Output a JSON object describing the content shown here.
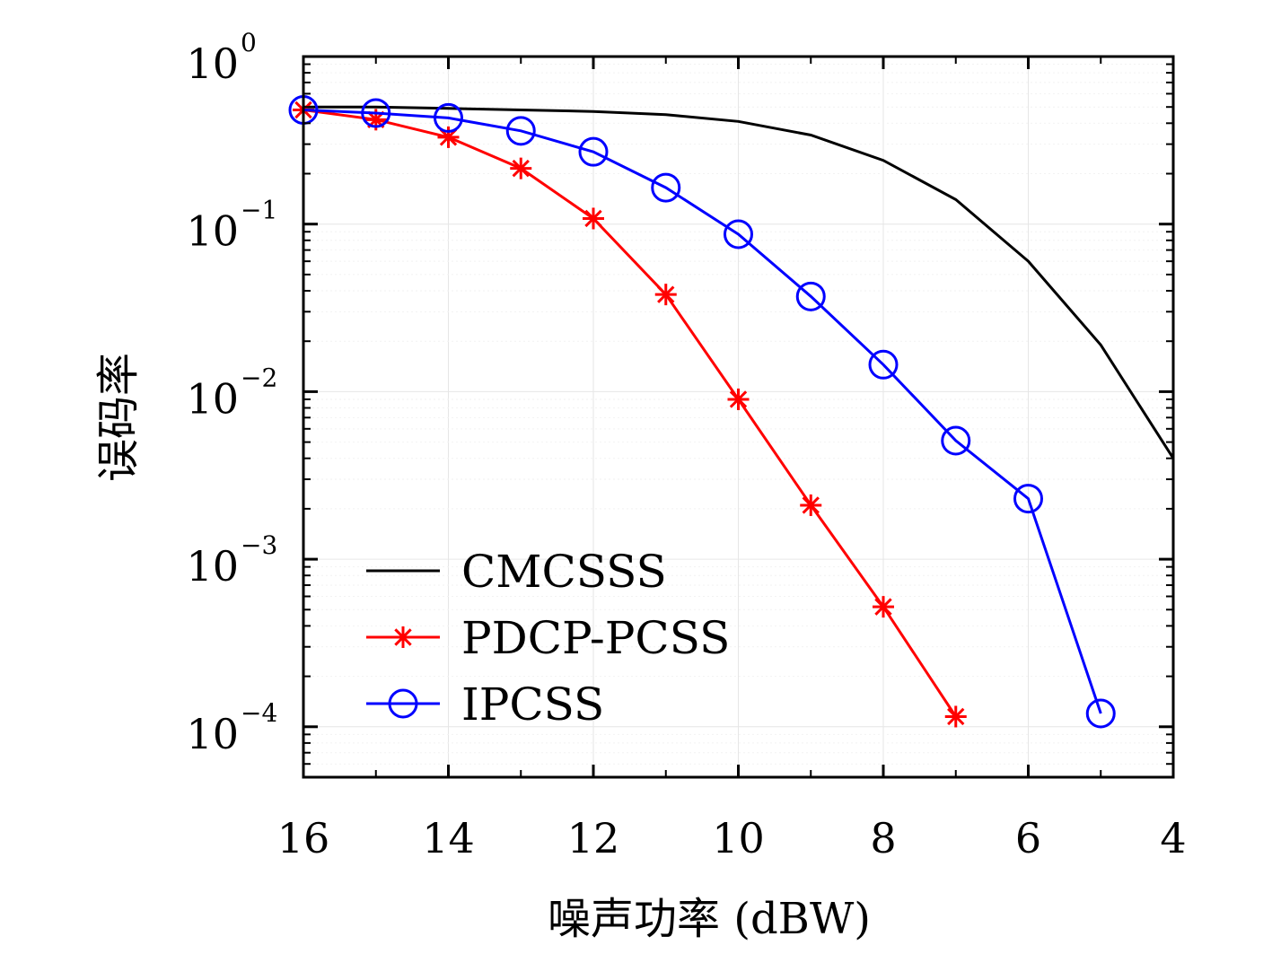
{
  "chart_data": {
    "type": "line",
    "title": "",
    "xlabel": "噪声功率 (dBW)",
    "ylabel": "误码率",
    "x_reversed": true,
    "xlim": [
      16,
      4
    ],
    "ylim": [
      5e-05,
      1
    ],
    "y_scale": "log",
    "x_ticks": [
      "16",
      "14",
      "12",
      "10",
      "8",
      "6",
      "4"
    ],
    "y_ticks": [
      {
        "base": "10",
        "exp": "0"
      },
      {
        "base": "10",
        "exp": "−1"
      },
      {
        "base": "10",
        "exp": "−2"
      },
      {
        "base": "10",
        "exp": "−3"
      },
      {
        "base": "10",
        "exp": "−4"
      }
    ],
    "grid": true,
    "legend_position": "bottom-left",
    "series": [
      {
        "name": "CMCSSS",
        "color": "#000000",
        "marker": "none",
        "x": [
          16,
          15,
          14,
          13,
          12,
          11,
          10,
          9,
          8,
          7,
          6,
          5,
          4
        ],
        "y": [
          0.5,
          0.5,
          0.49,
          0.48,
          0.47,
          0.45,
          0.41,
          0.34,
          0.24,
          0.14,
          0.06,
          0.019,
          0.004
        ]
      },
      {
        "name": "PDCP-PCSS",
        "color": "#ff0000",
        "marker": "asterisk",
        "x": [
          16,
          15,
          14,
          13,
          12,
          11,
          10,
          9,
          8,
          7
        ],
        "y": [
          0.48,
          0.42,
          0.33,
          0.215,
          0.108,
          0.038,
          0.009,
          0.0021,
          0.00052,
          0.000115
        ]
      },
      {
        "name": "IPCSS",
        "color": "#0000ff",
        "marker": "circle",
        "x": [
          16,
          15,
          14,
          13,
          12,
          11,
          10,
          9,
          8,
          7,
          6,
          5
        ],
        "y": [
          0.48,
          0.46,
          0.43,
          0.36,
          0.27,
          0.165,
          0.087,
          0.037,
          0.0145,
          0.0051,
          0.0023,
          0.00012
        ]
      }
    ]
  }
}
